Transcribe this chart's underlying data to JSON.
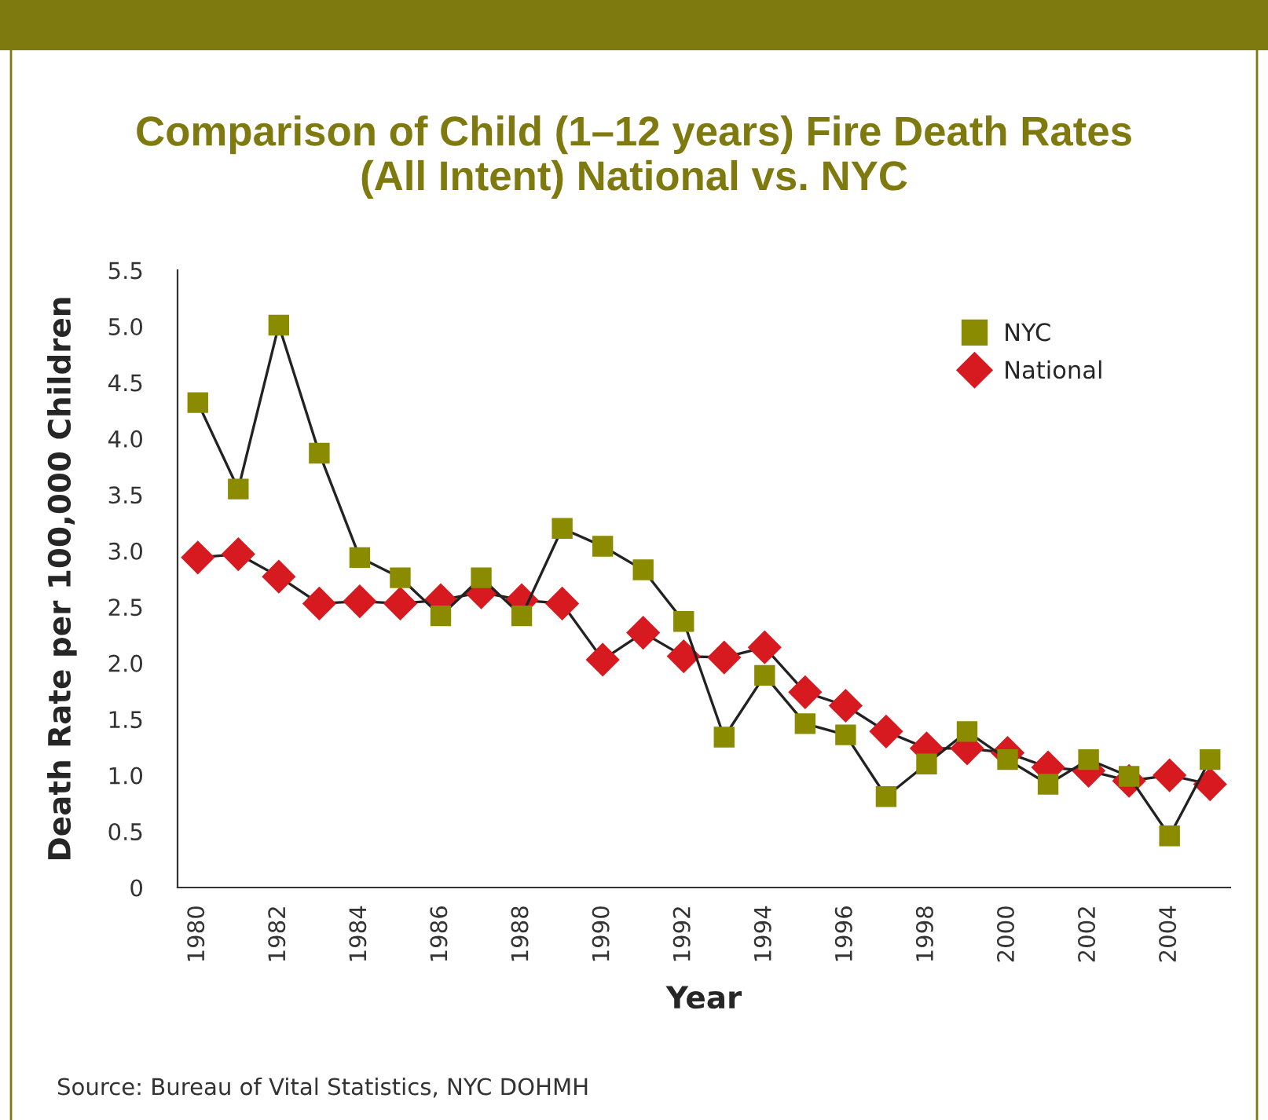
{
  "chart_data": {
    "type": "line",
    "title": "Comparison of Child (1–12 years) Fire Death Rates\n(All Intent) National vs. NYC",
    "xlabel": "Year",
    "ylabel": "Death Rate per 100,000 Children",
    "categories": [
      "1980",
      null,
      "1982",
      null,
      "1984",
      null,
      "1986",
      null,
      "1988",
      null,
      "1990",
      null,
      "1992",
      null,
      "1994",
      null,
      "1996",
      null,
      "1998",
      null,
      "2000",
      null,
      "2002",
      null,
      "2004",
      null
    ],
    "series": [
      {
        "name": "NYC",
        "color": "#8b8b00",
        "marker": "square",
        "values": [
          4.32,
          3.55,
          5.01,
          3.87,
          2.94,
          2.76,
          2.42,
          2.76,
          2.42,
          3.2,
          3.04,
          2.83,
          2.37,
          1.34,
          1.89,
          1.46,
          1.36,
          0.81,
          1.1,
          1.39,
          1.14,
          0.92,
          1.14,
          0.99,
          0.46,
          1.14
        ]
      },
      {
        "name": "National",
        "color": "#d71920",
        "marker": "diamond",
        "values": [
          2.94,
          2.97,
          2.77,
          2.53,
          2.55,
          2.53,
          2.56,
          2.63,
          2.56,
          2.53,
          2.03,
          2.27,
          2.06,
          2.05,
          2.14,
          1.74,
          1.62,
          1.39,
          1.24,
          1.24,
          1.2,
          1.07,
          1.04,
          0.95,
          1.0,
          0.92
        ]
      }
    ],
    "ylim": [
      0,
      5.5
    ],
    "yticks": [
      {
        "value": 0,
        "label": "0"
      },
      {
        "value": 0.5,
        "label": "0.5"
      },
      {
        "value": 1,
        "label": "1.0"
      },
      {
        "value": 1.5,
        "label": "1.5"
      },
      {
        "value": 2,
        "label": "2.0"
      },
      {
        "value": 2.5,
        "label": "2.5"
      },
      {
        "value": 3,
        "label": "3.0"
      },
      {
        "value": 3.5,
        "label": "3.5"
      },
      {
        "value": 4,
        "label": "4.0"
      },
      {
        "value": 4.5,
        "label": "4.5"
      },
      {
        "value": 5,
        "label": "5.0"
      },
      {
        "value": 5.5,
        "label": "5.5"
      }
    ],
    "grid": false,
    "legend": "top right",
    "line_style": "solid",
    "annotations": [
      "Source: Bureau of Vital Statistics, NYC DOHMH"
    ]
  }
}
